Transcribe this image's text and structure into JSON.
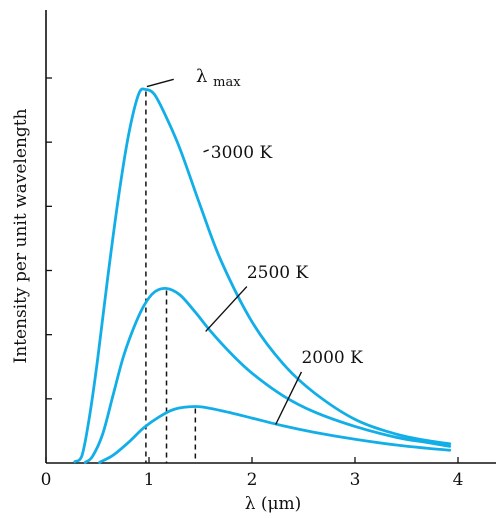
{
  "chart_data": {
    "type": "line",
    "title": "",
    "xlabel": "λ (μm)",
    "ylabel": "Intensity per unit wavelength",
    "xlim": [
      0,
      4
    ],
    "ylim": [
      0,
      6
    ],
    "xticks": [
      0,
      1,
      2,
      3,
      4
    ],
    "grid": false,
    "y_tick_count": 6,
    "peak_label": {
      "symbol": "λ",
      "subscript": "max"
    },
    "series": [
      {
        "name": "3000 K",
        "color": "#12aee8",
        "peak_x": 0.97,
        "x": [
          0.28,
          0.35,
          0.42,
          0.5,
          0.6,
          0.7,
          0.8,
          0.9,
          0.97,
          1.05,
          1.15,
          1.3,
          1.5,
          1.7,
          2.0,
          2.3,
          2.6,
          3.0,
          3.4,
          3.7,
          3.92
        ],
        "y": [
          0.02,
          0.12,
          0.7,
          1.6,
          2.9,
          4.1,
          5.1,
          5.75,
          5.82,
          5.75,
          5.45,
          4.9,
          4.0,
          3.15,
          2.2,
          1.55,
          1.1,
          0.68,
          0.45,
          0.35,
          0.3
        ]
      },
      {
        "name": "2500 K",
        "color": "#12aee8",
        "peak_x": 1.17,
        "x": [
          0.38,
          0.45,
          0.55,
          0.65,
          0.75,
          0.85,
          0.95,
          1.05,
          1.17,
          1.3,
          1.45,
          1.6,
          1.8,
          2.0,
          2.3,
          2.6,
          3.0,
          3.4,
          3.7,
          3.92
        ],
        "y": [
          0.01,
          0.1,
          0.45,
          1.05,
          1.65,
          2.1,
          2.45,
          2.66,
          2.72,
          2.62,
          2.35,
          2.05,
          1.7,
          1.4,
          1.05,
          0.8,
          0.57,
          0.4,
          0.32,
          0.26
        ]
      },
      {
        "name": "2000 K",
        "color": "#12aee8",
        "peak_x": 1.45,
        "x": [
          0.52,
          0.65,
          0.8,
          0.95,
          1.1,
          1.25,
          1.45,
          1.6,
          1.8,
          2.0,
          2.3,
          2.6,
          3.0,
          3.4,
          3.7,
          3.92
        ],
        "y": [
          0.01,
          0.12,
          0.32,
          0.55,
          0.72,
          0.84,
          0.88,
          0.85,
          0.78,
          0.7,
          0.58,
          0.48,
          0.37,
          0.28,
          0.23,
          0.2
        ]
      }
    ]
  }
}
